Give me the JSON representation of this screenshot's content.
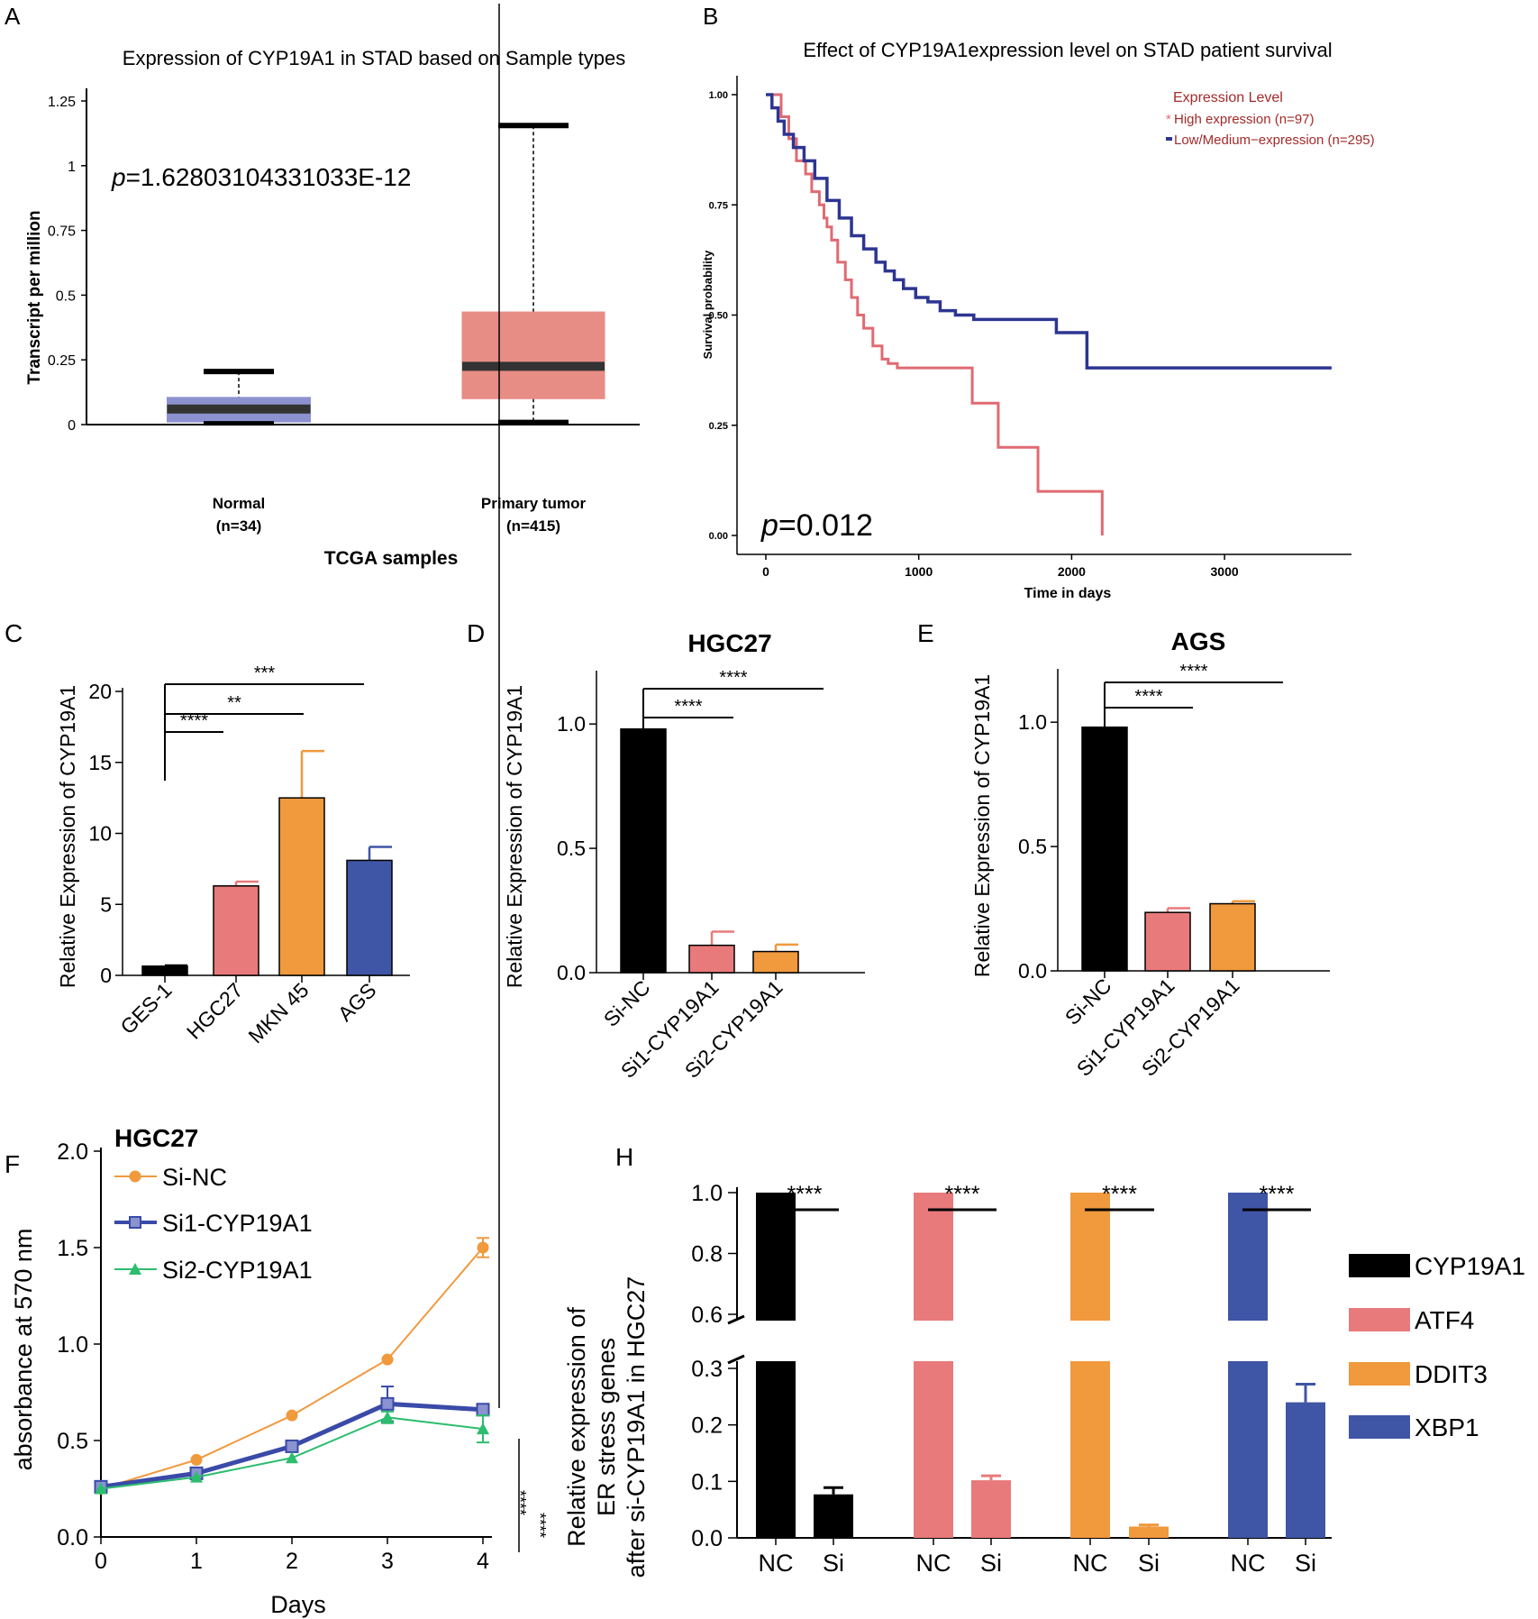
{
  "panel_letters": [
    "A",
    "B",
    "C",
    "D",
    "E",
    "F",
    "H"
  ],
  "colors": {
    "black": "#000000",
    "pink": "#e97a7b",
    "orange": "#f0993d",
    "blue": "#3f55a5",
    "box_normal": "#8c92cf",
    "box_tumor": "#e88c86",
    "km_high": "#e06a72",
    "km_low": "#2d3592",
    "legend_text": "#a52a2a",
    "line_si1": "#3a4aa8",
    "line_si2": "#2dbd6e"
  },
  "chart_data": [
    {
      "panel": "A",
      "type": "box",
      "title": "Expression of CYP19A1 in STAD based on Sample types",
      "xlabel": "TCGA samples",
      "ylabel": "Transcript per million",
      "ylim": [
        0,
        1.25
      ],
      "yticks": [
        "0",
        "0.25",
        "0.5",
        "0.75",
        "1",
        "1.25"
      ],
      "p_label": "p",
      "p_value": "=1.62803104331033E-12",
      "categories": [
        {
          "name": "Normal",
          "n": "(n=34)",
          "min": 0.005,
          "q1": 0.01,
          "median": 0.06,
          "q3": 0.105,
          "max": 0.205
        },
        {
          "name": "Primary tumor",
          "n": "(n=415)",
          "min": 0.01,
          "q1": 0.1,
          "median": 0.225,
          "q3": 0.435,
          "max": 1.155
        }
      ]
    },
    {
      "panel": "B",
      "type": "line",
      "title": "Effect of CYP19A1expression level on STAD patient survival",
      "xlabel": "Time in days",
      "ylabel": "Survival probability",
      "xticks": [
        "0",
        "1000",
        "2000",
        "3000"
      ],
      "yticks": [
        "0.00",
        "0.25",
        "0.50",
        "0.75",
        "1.00"
      ],
      "xlim": [
        0,
        3700
      ],
      "ylim": [
        0,
        1
      ],
      "p_label": "p",
      "p_value": "=0.012",
      "legend_title": "Expression Level",
      "series": [
        {
          "name": "High expression (n=97)",
          "x": [
            0,
            80,
            100,
            150,
            200,
            260,
            300,
            350,
            380,
            400,
            430,
            470,
            520,
            560,
            600,
            640,
            700,
            760,
            800,
            860,
            920,
            1320,
            1350,
            1420,
            1520,
            1620,
            1720,
            1780,
            1860,
            2000,
            2100,
            2150,
            2200
          ],
          "y": [
            1.0,
            1.0,
            0.95,
            0.9,
            0.85,
            0.82,
            0.78,
            0.75,
            0.72,
            0.7,
            0.67,
            0.62,
            0.58,
            0.54,
            0.5,
            0.47,
            0.43,
            0.4,
            0.39,
            0.38,
            0.38,
            0.38,
            0.3,
            0.3,
            0.2,
            0.2,
            0.2,
            0.1,
            0.1,
            0.1,
            0.1,
            0.1,
            0.0
          ]
        },
        {
          "name": "Low/Medium−expression (n=295)",
          "x": [
            0,
            40,
            80,
            120,
            180,
            250,
            320,
            400,
            480,
            560,
            640,
            720,
            780,
            840,
            900,
            980,
            1060,
            1140,
            1240,
            1360,
            1500,
            1700,
            1900,
            2100,
            2300,
            2600,
            2900,
            3200,
            3700
          ],
          "y": [
            1.0,
            0.97,
            0.94,
            0.91,
            0.88,
            0.85,
            0.81,
            0.76,
            0.72,
            0.68,
            0.65,
            0.62,
            0.6,
            0.58,
            0.56,
            0.54,
            0.53,
            0.51,
            0.5,
            0.49,
            0.49,
            0.49,
            0.46,
            0.38,
            0.38,
            0.38,
            0.38,
            0.38,
            0.38
          ]
        }
      ]
    },
    {
      "panel": "C",
      "type": "bar",
      "ylabel": "Relative Expression of CYP19A1",
      "categories": [
        "GES-1",
        "HGC27",
        "MKN 45",
        "AGS"
      ],
      "values": [
        0.65,
        6.3,
        12.5,
        8.1
      ],
      "errors": [
        0.05,
        0.3,
        3.3,
        0.95
      ],
      "ylim": [
        0,
        20
      ],
      "yticks": [
        "0",
        "5",
        "10",
        "15",
        "20"
      ],
      "significance": [
        "****",
        "**",
        "***"
      ]
    },
    {
      "panel": "D",
      "type": "bar",
      "title": "HGC27",
      "ylabel": "Relative Expression of CYP19A1",
      "categories": [
        "Si-NC",
        "Si1-CYP19A1",
        "Si2-CYP19A1"
      ],
      "values": [
        0.98,
        0.11,
        0.085
      ],
      "errors": [
        0.0,
        0.055,
        0.028
      ],
      "ylim": [
        0,
        1.2
      ],
      "yticks": [
        "0.0",
        "0.5",
        "1.0"
      ],
      "significance": [
        "****",
        "****"
      ]
    },
    {
      "panel": "E",
      "type": "bar",
      "title": "AGS",
      "ylabel": "Relative Expression of CYP19A1",
      "categories": [
        "Si-NC",
        "Si1-CYP19A1",
        "Si2-CYP19A1"
      ],
      "values": [
        0.98,
        0.235,
        0.27
      ],
      "errors": [
        0.0,
        0.017,
        0.01
      ],
      "ylim": [
        0,
        1.2
      ],
      "yticks": [
        "0.0",
        "0.5",
        "1.0"
      ],
      "significance": [
        "****",
        "****"
      ]
    },
    {
      "panel": "F",
      "type": "line",
      "title": "HGC27",
      "xlabel": "Days",
      "ylabel": "absorbance at 570 nm",
      "x": [
        0,
        1,
        2,
        3,
        4
      ],
      "xticks": [
        "0",
        "1",
        "2",
        "3",
        "4"
      ],
      "yticks": [
        "0.0",
        "0.5",
        "1.0",
        "1.5",
        "2.0"
      ],
      "ylim": [
        0,
        2.0
      ],
      "series": [
        {
          "name": "Si-NC",
          "values": [
            0.25,
            0.4,
            0.63,
            0.92,
            1.5
          ],
          "errors": [
            0.0,
            0.0,
            0.0,
            0.0,
            0.05
          ]
        },
        {
          "name": "Si1-CYP19A1",
          "values": [
            0.26,
            0.33,
            0.47,
            0.69,
            0.66
          ],
          "errors": [
            0.03,
            0.0,
            0.0,
            0.09,
            0.02
          ]
        },
        {
          "name": "Si2-CYP19A1",
          "values": [
            0.25,
            0.31,
            0.41,
            0.62,
            0.56
          ],
          "errors": [
            0.0,
            0.0,
            0.0,
            0.03,
            0.07
          ]
        }
      ],
      "significance": [
        "****",
        "****"
      ]
    },
    {
      "panel": "H",
      "type": "bar",
      "ylabel_lines": [
        "Relative expression of",
        "ER stress genes",
        "after si-CYP19A1 in  HGC27"
      ],
      "axis_break": {
        "lower": [
          0,
          0.3
        ],
        "upper": [
          0.6,
          1.0
        ]
      },
      "yticks_lower": [
        "0.0",
        "0.1",
        "0.2",
        "0.3"
      ],
      "yticks_upper": [
        "0.6",
        "0.8",
        "1.0"
      ],
      "categories": [
        "NC",
        "Si"
      ],
      "series": [
        {
          "name": "CYP19A1",
          "values": [
            1.0,
            0.077
          ],
          "errors": [
            0.0,
            0.012
          ]
        },
        {
          "name": "ATF4",
          "values": [
            1.0,
            0.102
          ],
          "errors": [
            0.0,
            0.008
          ]
        },
        {
          "name": "DDIT3",
          "values": [
            1.0,
            0.02
          ],
          "errors": [
            0.0,
            0.003
          ]
        },
        {
          "name": "XBP1",
          "values": [
            1.0,
            0.24
          ],
          "errors": [
            0.0,
            0.032
          ]
        }
      ],
      "significance": [
        "****",
        "****",
        "****",
        "****"
      ]
    }
  ]
}
